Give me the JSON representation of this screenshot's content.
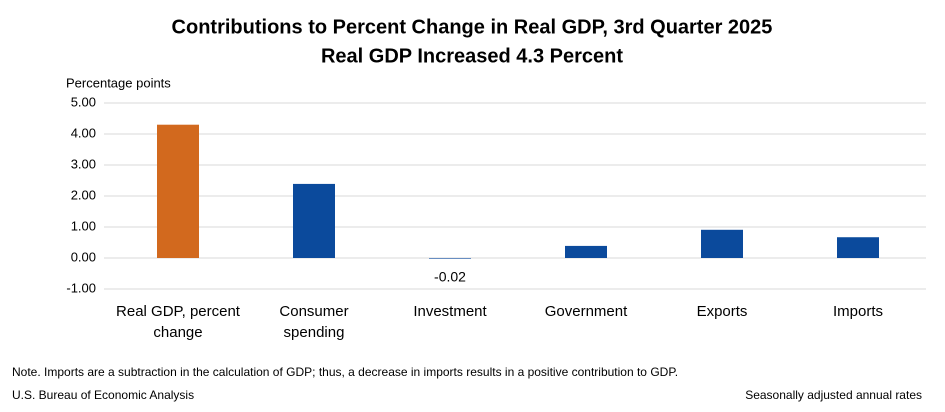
{
  "chart_data": {
    "type": "bar",
    "title": "Contributions to Percent Change in Real GDP, 3rd Quarter 2025",
    "subtitle": "Real GDP Increased 4.3 Percent",
    "y_label": "Percentage points",
    "categories": [
      "Real GDP, percent change",
      "Consumer spending",
      "Investment",
      "Government",
      "Exports",
      "Imports"
    ],
    "values": [
      4.3,
      2.39,
      -0.02,
      0.39,
      0.91,
      0.67
    ],
    "value_labels": [
      null,
      null,
      "-0.02",
      null,
      null,
      null
    ],
    "colors": [
      "#d2691e",
      "#0b4a9c",
      "#0b4a9c",
      "#0b4a9c",
      "#0b4a9c",
      "#0b4a9c"
    ],
    "ylim": [
      -1,
      5
    ],
    "yticks": [
      {
        "value": -1,
        "label": "-1.00"
      },
      {
        "value": 0,
        "label": "0.00"
      },
      {
        "value": 1,
        "label": "1.00"
      },
      {
        "value": 2,
        "label": "2.00"
      },
      {
        "value": 3,
        "label": "3.00"
      },
      {
        "value": 4,
        "label": "4.00"
      },
      {
        "value": 5,
        "label": "5.00"
      }
    ],
    "grid": true,
    "note": "Note. Imports are a subtraction in the calculation of GDP; thus, a decrease in imports results in a positive contribution to GDP.",
    "source": "U.S. Bureau of Economic Analysis",
    "footnote": "Seasonally adjusted annual rates"
  }
}
